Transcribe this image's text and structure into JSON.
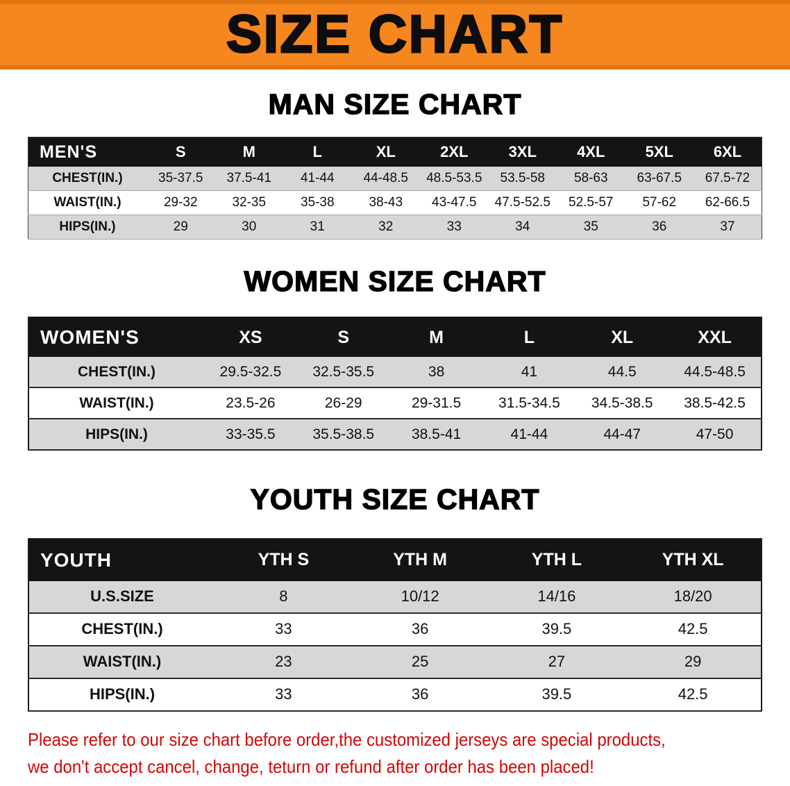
{
  "banner": {
    "title": "SIZE CHART",
    "bg_color": "#F6861E"
  },
  "sections": [
    {
      "id": "men",
      "heading": "MAN SIZE CHART",
      "table": {
        "name": "men-size-table",
        "header_label": "MEN'S",
        "columns": [
          "S",
          "M",
          "L",
          "XL",
          "2XL",
          "3XL",
          "4XL",
          "5XL",
          "6XL"
        ],
        "rows": [
          {
            "label": "CHEST(IN.)",
            "values": [
              "35-37.5",
              "37.5-41",
              "41-44",
              "44-48.5",
              "48.5-53.5",
              "53.5-58",
              "58-63",
              "63-67.5",
              "67.5-72"
            ]
          },
          {
            "label": "WAIST(IN.)",
            "values": [
              "29-32",
              "32-35",
              "35-38",
              "38-43",
              "43-47.5",
              "47.5-52.5",
              "52.5-57",
              "57-62",
              "62-66.5"
            ]
          },
          {
            "label": "HIPS(IN.)",
            "values": [
              "29",
              "30",
              "31",
              "32",
              "33",
              "34",
              "35",
              "36",
              "37"
            ]
          }
        ]
      }
    },
    {
      "id": "women",
      "heading": "WOMEN SIZE CHART",
      "table": {
        "name": "women-size-table",
        "header_label": "WOMEN'S",
        "columns": [
          "XS",
          "S",
          "M",
          "L",
          "XL",
          "XXL"
        ],
        "rows": [
          {
            "label": "CHEST(IN.)",
            "values": [
              "29.5-32.5",
              "32.5-35.5",
              "38",
              "41",
              "44.5",
              "44.5-48.5"
            ]
          },
          {
            "label": "WAIST(IN.)",
            "values": [
              "23.5-26",
              "26-29",
              "29-31.5",
              "31.5-34.5",
              "34.5-38.5",
              "38.5-42.5"
            ]
          },
          {
            "label": "HIPS(IN.)",
            "values": [
              "33-35.5",
              "35.5-38.5",
              "38.5-41",
              "41-44",
              "44-47",
              "47-50"
            ]
          }
        ]
      }
    },
    {
      "id": "youth",
      "heading": "YOUTH SIZE CHART",
      "table": {
        "name": "youth-size-table",
        "header_label": "YOUTH",
        "columns": [
          "YTH S",
          "YTH M",
          "YTH L",
          "YTH XL"
        ],
        "rows": [
          {
            "label": "U.S.SIZE",
            "values": [
              "8",
              "10/12",
              "14/16",
              "18/20"
            ]
          },
          {
            "label": "CHEST(IN.)",
            "values": [
              "33",
              "36",
              "39.5",
              "42.5"
            ]
          },
          {
            "label": "WAIST(IN.)",
            "values": [
              "23",
              "25",
              "27",
              "29"
            ]
          },
          {
            "label": "HIPS(IN.)",
            "values": [
              "33",
              "36",
              "39.5",
              "42.5"
            ]
          }
        ]
      }
    }
  ],
  "disclaimer": {
    "color": "#d40505",
    "lines": [
      "Please refer to our size chart before order,the customized jerseys are special products,",
      "we don't accept cancel, change, teturn or refund after order has been placed!"
    ]
  }
}
